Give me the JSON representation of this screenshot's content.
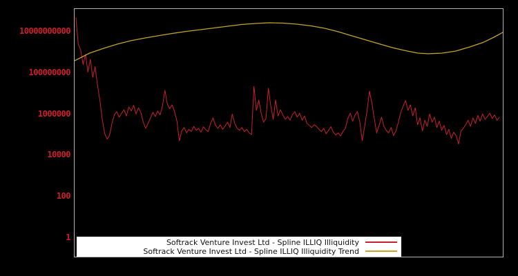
{
  "chart_data": {
    "type": "line",
    "title": "",
    "xlabel": "",
    "ylabel": "",
    "background_color": "#000000",
    "plot_border_color": "#b5b5b5",
    "tick_label_color": "#cc1f2e",
    "legend_position": "bottom-inside",
    "x_axis": {
      "labels_visible": false
    },
    "y_axis": {
      "scale": "log",
      "ticks": [
        1,
        100,
        10000,
        1000000,
        100000000,
        10000000000
      ],
      "range": [
        0.115,
        128000000000
      ]
    },
    "series": [
      {
        "name": "Softrack Venture Invest Ltd - Spline ILLIQ Illiquidity",
        "color": "#cc1f2e",
        "stroke_width": 1,
        "x_start_frac": 0.003,
        "x_step_frac": 0.00562,
        "values": [
          50000000000,
          2500000000,
          1300000000,
          250000000,
          800000000,
          110000000,
          450000000,
          60000000,
          200000000,
          25000000,
          4500000,
          500000,
          110000,
          60000,
          90000,
          350000,
          900000,
          1300000,
          700000,
          1100000,
          1600000,
          800000,
          2200000,
          1400000,
          2600000,
          1000000,
          2000000,
          1200000,
          400000,
          200000,
          350000,
          650000,
          1200000,
          750000,
          1400000,
          900000,
          2500000,
          14000000,
          3000000,
          1800000,
          2800000,
          1300000,
          450000,
          50000,
          150000,
          220000,
          120000,
          180000,
          140000,
          250000,
          160000,
          200000,
          130000,
          240000,
          170000,
          140000,
          350000,
          650000,
          280000,
          200000,
          300000,
          180000,
          260000,
          400000,
          220000,
          1000000,
          350000,
          200000,
          160000,
          220000,
          140000,
          180000,
          120000,
          100000,
          22000000,
          1500000,
          4800000,
          1100000,
          400000,
          600000,
          18000000,
          2400000,
          550000,
          4800000,
          800000,
          1600000,
          900000,
          550000,
          750000,
          500000,
          950000,
          1300000,
          700000,
          1100000,
          500000,
          800000,
          350000,
          280000,
          220000,
          300000,
          250000,
          180000,
          140000,
          200000,
          110000,
          160000,
          240000,
          130000,
          95000,
          120000,
          85000,
          140000,
          200000,
          600000,
          1100000,
          450000,
          900000,
          1300000,
          400000,
          50000,
          250000,
          1500000,
          13000000,
          3500000,
          600000,
          120000,
          280000,
          700000,
          250000,
          160000,
          120000,
          220000,
          90000,
          150000,
          400000,
          1200000,
          2400000,
          4500000,
          1500000,
          2800000,
          800000,
          2000000,
          300000,
          650000,
          150000,
          500000,
          250000,
          1000000,
          400000,
          700000,
          220000,
          450000,
          160000,
          280000,
          100000,
          180000,
          65000,
          130000,
          90000,
          35000,
          150000,
          200000,
          300000,
          500000,
          250000,
          650000,
          350000,
          850000,
          450000,
          1000000,
          550000,
          750000,
          1100000,
          600000,
          900000,
          500000,
          700000
        ]
      },
      {
        "name": "Softrack Venture Invest Ltd - Spline ILLIQ Illiquidity Trend",
        "color": "#c5a428",
        "stroke_width": 1.3,
        "x_frac": [
          0,
          0.035,
          0.068,
          0.1,
          0.132,
          0.165,
          0.197,
          0.229,
          0.261,
          0.294,
          0.326,
          0.358,
          0.39,
          0.423,
          0.455,
          0.487,
          0.519,
          0.552,
          0.584,
          0.616,
          0.648,
          0.681,
          0.713,
          0.745,
          0.777,
          0.802,
          0.826,
          0.858,
          0.89,
          0.923,
          0.955,
          0.979,
          1.0
        ],
        "values": [
          390000000,
          910000000,
          1560000000,
          2500000000,
          3700000000,
          5000000000,
          6500000000,
          8300000000,
          10400000000,
          12600000000,
          15300000000,
          18600000000,
          22500000000,
          25200000000,
          27400000000,
          26300000000,
          23400000000,
          19300000000,
          14700000000,
          10000000000,
          6300000000,
          3950000000,
          2500000000,
          1630000000,
          1150000000,
          910000000,
          850000000,
          910000000,
          1150000000,
          1830000000,
          3100000000,
          5400000000,
          9300000000
        ]
      }
    ]
  }
}
